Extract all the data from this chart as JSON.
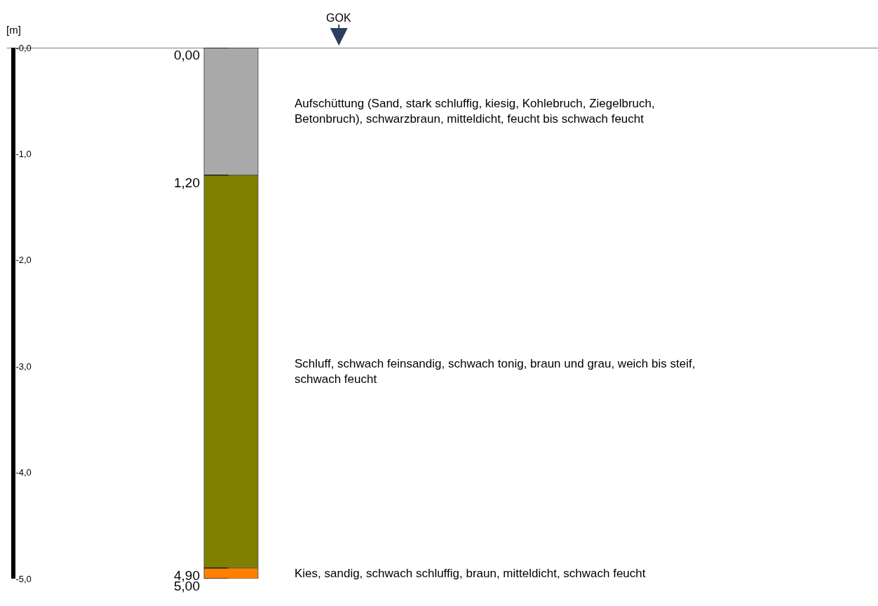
{
  "chart_data": {
    "type": "bar",
    "stacked": true,
    "categories": [
      null
    ],
    "series": [
      {
        "color": "#a9a9a9",
        "values": [
          -1.2
        ]
      },
      {
        "color": "#7f7f00",
        "values": [
          -3.7
        ]
      },
      {
        "color": "#ff8000",
        "values": [
          -0.1
        ]
      }
    ],
    "ylabel": "[m]",
    "ylim": [
      -5,
      0
    ],
    "yticks": [
      {
        "value": 0,
        "label": "-0,0"
      },
      {
        "value": -1,
        "label": "-1,0"
      },
      {
        "value": -2,
        "label": "-2,0"
      },
      {
        "value": -3,
        "label": "-3,0"
      },
      {
        "value": -4,
        "label": "-4,0"
      },
      {
        "value": -5,
        "label": "-5,0"
      }
    ],
    "tick_labels": "y",
    "ref_lines": [
      {
        "axis": "y",
        "value": 0,
        "label": "GOK"
      }
    ],
    "annotations": [
      "0,00",
      "1,20",
      "4,90",
      "5,00",
      "Aufschüttung (Sand, stark schluffig, kiesig, Kohlebruch, Ziegelbruch, Betonbruch), schwarzbraun, mitteldicht, feucht bis schwach feucht",
      "Schluff, schwach feinsandig, schwach tonig, braun und grau, weich bis steif, schwach feucht",
      "Kies, sandig, schwach schluffig, braun, mitteldicht, schwach feucht"
    ]
  }
}
